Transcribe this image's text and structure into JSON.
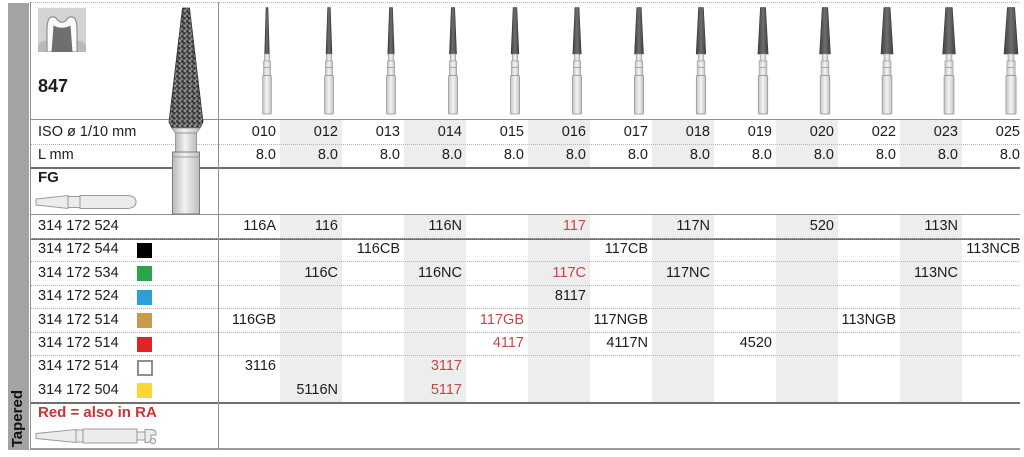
{
  "sidebar": {
    "label": "Tapered"
  },
  "figure": {
    "number": "847"
  },
  "row_labels": {
    "iso_label": "ISO ø 1/10 mm",
    "l_label": "L mm",
    "shank_label": "FG"
  },
  "columns": [
    "010",
    "012",
    "013",
    "014",
    "015",
    "016",
    "017",
    "018",
    "019",
    "020",
    "022",
    "023",
    "025"
  ],
  "l_values": [
    "8.0",
    "8.0",
    "8.0",
    "8.0",
    "8.0",
    "8.0",
    "8.0",
    "8.0",
    "8.0",
    "8.0",
    "8.0",
    "8.0",
    "8.0"
  ],
  "products": [
    {
      "article": "314 172 524",
      "grit": null,
      "cells": [
        {
          "col": 0,
          "code": "116A"
        },
        {
          "col": 1,
          "code": "116"
        },
        {
          "col": 3,
          "code": "116N"
        },
        {
          "col": 5,
          "code": "117",
          "red": true
        },
        {
          "col": 7,
          "code": "117N"
        },
        {
          "col": 9,
          "code": "520"
        },
        {
          "col": 11,
          "code": "113N"
        }
      ]
    },
    {
      "article": "314 172 544",
      "grit": "black",
      "cells": [
        {
          "col": 2,
          "code": "116CB"
        },
        {
          "col": 6,
          "code": "117CB"
        },
        {
          "col": 12,
          "code": "113NCB"
        }
      ]
    },
    {
      "article": "314 172 534",
      "grit": "green",
      "cells": [
        {
          "col": 1,
          "code": "116C"
        },
        {
          "col": 3,
          "code": "116NC"
        },
        {
          "col": 5,
          "code": "117C",
          "red": true
        },
        {
          "col": 7,
          "code": "117NC"
        },
        {
          "col": 11,
          "code": "113NC"
        }
      ]
    },
    {
      "article": "314 172 524",
      "grit": "blue",
      "cells": [
        {
          "col": 5,
          "code": "8117"
        }
      ]
    },
    {
      "article": "314 172 514",
      "grit": "gold",
      "cells": [
        {
          "col": 0,
          "code": "116GB"
        },
        {
          "col": 4,
          "code": "117GB",
          "red": true
        },
        {
          "col": 6,
          "code": "117NGB"
        },
        {
          "col": 10,
          "code": "113NGB"
        }
      ]
    },
    {
      "article": "314 172 514",
      "grit": "red",
      "cells": [
        {
          "col": 4,
          "code": "4117",
          "red": true
        },
        {
          "col": 6,
          "code": "4117N"
        },
        {
          "col": 8,
          "code": "4520"
        }
      ]
    },
    {
      "article": "314 172 514",
      "grit": "white",
      "cells": [
        {
          "col": 0,
          "code": "3116"
        },
        {
          "col": 3,
          "code": "3117",
          "red": true
        }
      ]
    },
    {
      "article": "314 172 504",
      "grit": "yellow",
      "cells": [
        {
          "col": 1,
          "code": "5116N"
        },
        {
          "col": 3,
          "code": "5117",
          "red": true
        }
      ]
    }
  ],
  "note": {
    "text": "Red = also in RA"
  },
  "colors": {
    "accent_red": "#c84545",
    "note_red": "#cc3333",
    "shaded_column": "#ededed",
    "rail_gray": "#a3a3a3",
    "grit_colors": {
      "black": "#000000",
      "green": "#2aa54c",
      "blue": "#2b9fd8",
      "gold": "#c99a4a",
      "red": "#dd2527",
      "white": "#ffffff",
      "yellow": "#fed730"
    }
  }
}
